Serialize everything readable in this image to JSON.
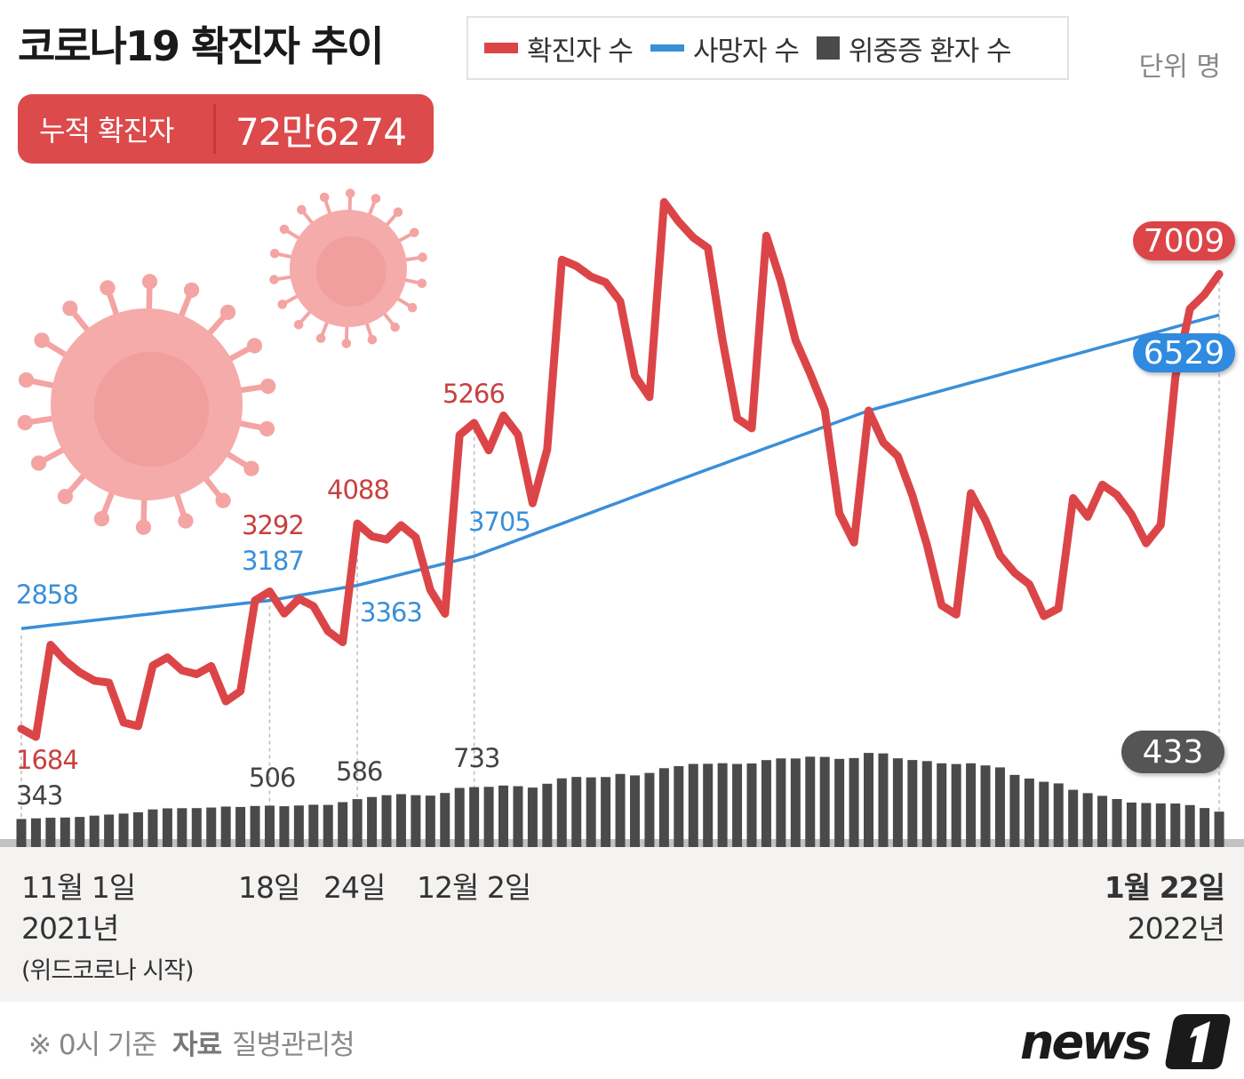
{
  "title": "코로나19 확진자 추이",
  "unit": "단위 명",
  "cumulative": {
    "label": "누적 확진자",
    "value": "72만6274"
  },
  "colors": {
    "confirmed": "#dc4548",
    "deaths": "#3a8fd8",
    "severe": "#4a4a4a",
    "virus": "#f3a4a3"
  },
  "footer": {
    "note": "※ 0시 기준",
    "source_label": "자료",
    "source": "질병관리청",
    "logo": "news1"
  },
  "chart_data": {
    "type": "line",
    "title": "코로나19 확진자 추이",
    "start_date": "2021-11-01",
    "end_date": "2022-01-22",
    "ylim": [
      0,
      8500
    ],
    "legend": {
      "position": "top",
      "items": [
        {
          "name": "확진자 수",
          "kind": "line"
        },
        {
          "name": "사망자 수",
          "kind": "line"
        },
        {
          "name": "위중증 환자 수",
          "kind": "bar"
        }
      ]
    },
    "x_ticks": [
      {
        "day": 0,
        "label": "11월 1일",
        "sub": "2021년",
        "note": "(위드코로나 시작)"
      },
      {
        "day": 17,
        "label": "18일"
      },
      {
        "day": 23,
        "label": "24일"
      },
      {
        "day": 31,
        "label": "12월 2일"
      },
      {
        "day": 82,
        "label": "1월 22일",
        "sub": "2022년"
      }
    ],
    "series": [
      {
        "name": "확진자 수",
        "type": "line",
        "values": [
          1684,
          1589,
          2667,
          2482,
          2344,
          2248,
          2224,
          1758,
          1715,
          2425,
          2520,
          2368,
          2324,
          2419,
          2006,
          2124,
          3187,
          3292,
          3034,
          3206,
          3120,
          2827,
          2699,
          4088,
          3938,
          3899,
          4068,
          3925,
          3309,
          3032,
          5123,
          5266,
          4944,
          5352,
          5128,
          4325,
          4954,
          7175,
          7102,
          6977,
          6911,
          6689,
          5817,
          5567,
          7850,
          7622,
          7435,
          7314,
          6236,
          5318,
          5202,
          7456,
          6919,
          6233,
          5842,
          5419,
          4207,
          3865,
          5409,
          5037,
          4875,
          4416,
          3833,
          3129,
          3022,
          4443,
          4126,
          3713,
          3510,
          3376,
          3005,
          3094,
          4385,
          4167,
          4542,
          4423,
          4194,
          3857,
          4071,
          5805,
          6603,
          6769,
          7009
        ],
        "labels": [
          {
            "day": 0,
            "text": "1684"
          },
          {
            "day": 17,
            "text": "3292"
          },
          {
            "day": 23,
            "text": "4088"
          },
          {
            "day": 31,
            "text": "5266"
          },
          {
            "day": 82,
            "text": "7009"
          }
        ]
      },
      {
        "name": "사망자 수",
        "type": "line",
        "values": [
          2858,
          2877,
          2897,
          2916,
          2935,
          2955,
          2974,
          2993,
          3013,
          3032,
          3052,
          3071,
          3090,
          3110,
          3129,
          3148,
          3168,
          3187,
          3216,
          3246,
          3275,
          3304,
          3334,
          3363,
          3406,
          3449,
          3491,
          3534,
          3577,
          3620,
          3662,
          3705,
          3769,
          3832,
          3896,
          3960,
          4024,
          4087,
          4151,
          4215,
          4279,
          4342,
          4406,
          4470,
          4533,
          4597,
          4659,
          4722,
          4784,
          4847,
          4909,
          4972,
          5034,
          5097,
          5159,
          5222,
          5284,
          5347,
          5409,
          5456,
          5502,
          5549,
          5596,
          5642,
          5689,
          5736,
          5782,
          5829,
          5876,
          5922,
          5969,
          6016,
          6062,
          6109,
          6156,
          6202,
          6249,
          6296,
          6342,
          6389,
          6436,
          6482,
          6529
        ],
        "labels": [
          {
            "day": 0,
            "text": "2858"
          },
          {
            "day": 17,
            "text": "3187"
          },
          {
            "day": 23,
            "text": "3363"
          },
          {
            "day": 31,
            "text": "3705"
          },
          {
            "day": 82,
            "text": "6529"
          }
        ]
      },
      {
        "name": "위중증 환자 수",
        "type": "bar",
        "values": [
          343,
          351,
          358,
          361,
          368,
          384,
          397,
          409,
          425,
          460,
          473,
          475,
          476,
          483,
          495,
          490,
          502,
          506,
          499,
          508,
          517,
          515,
          549,
          586,
          612,
          634,
          647,
          634,
          629,
          661,
          723,
          733,
          736,
          752,
          744,
          727,
          774,
          840,
          857,
          852,
          856,
          894,
          876,
          906,
          964,
          989,
          1016,
          1018,
          1025,
          1016,
          1022,
          1063,
          1084,
          1083,
          1105,
          1102,
          1078,
          1088,
          1151,
          1145,
          1085,
          1064,
          1051,
          1024,
          1015,
          1024,
          998,
          974,
          882,
          838,
          798,
          778,
          700,
          659,
          626,
          587,
          544,
          538,
          533,
          532,
          513,
          477,
          433
        ],
        "labels": [
          {
            "day": 0,
            "text": "343"
          },
          {
            "day": 17,
            "text": "506"
          },
          {
            "day": 23,
            "text": "586"
          },
          {
            "day": 31,
            "text": "733"
          },
          {
            "day": 82,
            "text": "433"
          }
        ]
      }
    ]
  }
}
